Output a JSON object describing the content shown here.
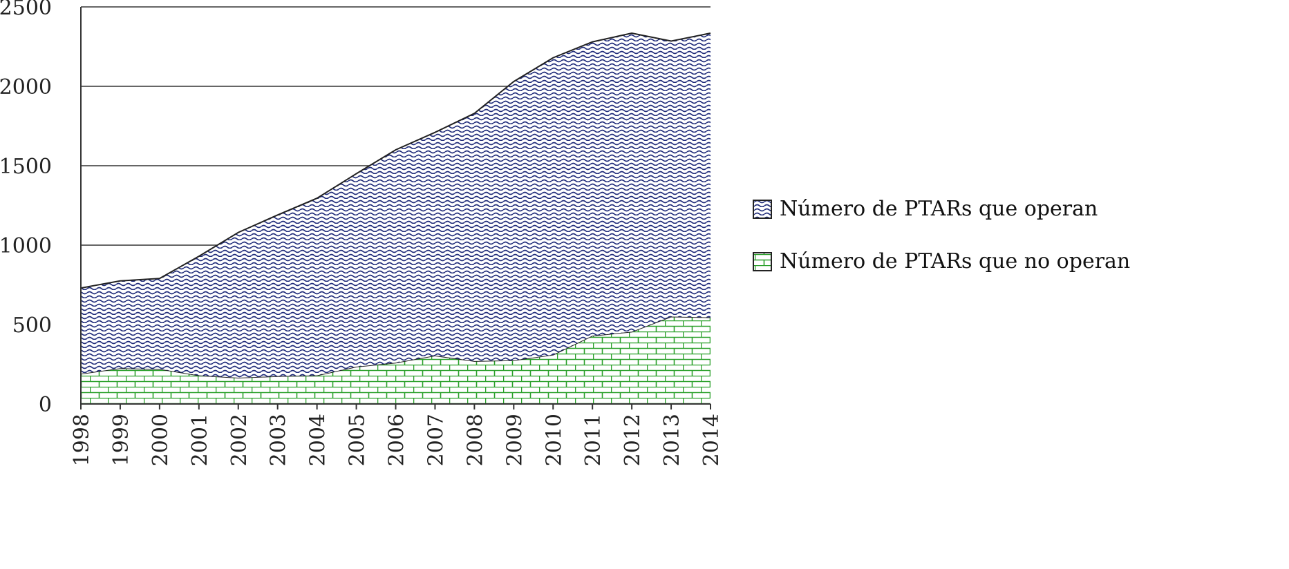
{
  "chart_data": {
    "type": "area",
    "stacked": true,
    "title": "",
    "xlabel": "",
    "ylabel": "",
    "ylim": [
      0,
      2500
    ],
    "yticks": [
      "0",
      "500",
      "1000",
      "1500",
      "2000",
      "2500"
    ],
    "grid": true,
    "legend_position": "right",
    "categories": [
      "1998",
      "1999",
      "2000",
      "2001",
      "2002",
      "2003",
      "2004",
      "2005",
      "2006",
      "2007",
      "2008",
      "2009",
      "2010",
      "2011",
      "2012",
      "2013",
      "2014"
    ],
    "series": [
      {
        "name": "Número de PTARs que no operan",
        "pattern": "green-brick",
        "color": "#2aa02a",
        "values": [
          190,
          225,
          220,
          180,
          165,
          175,
          180,
          235,
          260,
          305,
          270,
          275,
          310,
          430,
          455,
          550,
          545
        ]
      },
      {
        "name": "Número de PTARs que operan",
        "pattern": "blue-wave",
        "color": "#1f2b7a",
        "values": [
          540,
          550,
          570,
          750,
          915,
          1015,
          1115,
          1215,
          1340,
          1405,
          1560,
          1755,
          1870,
          1850,
          1880,
          1735,
          1790
        ]
      }
    ],
    "legend_order": [
      "Número de PTARs que operan",
      "Número de PTARs que no operan"
    ]
  }
}
